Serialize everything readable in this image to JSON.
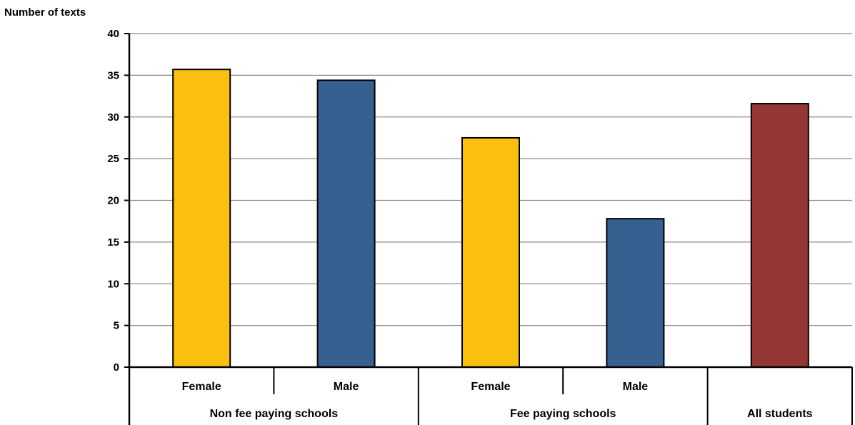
{
  "chart_data": {
    "type": "bar",
    "title": "",
    "ylabel": "Number of texts",
    "xlabel": "",
    "ylim": [
      0,
      40
    ],
    "yticks": [
      0,
      5,
      10,
      15,
      20,
      25,
      30,
      35,
      40
    ],
    "grid": true,
    "legend": "none",
    "categories": [
      "Female",
      "Male",
      "Female",
      "Male",
      ""
    ],
    "groups": [
      {
        "label": "Non fee paying schools",
        "categories": [
          "Female",
          "Male"
        ]
      },
      {
        "label": "Fee paying schools",
        "categories": [
          "Female",
          "Male"
        ]
      },
      {
        "label": "All students",
        "categories": [
          ""
        ]
      }
    ],
    "values": [
      35.7,
      34.4,
      27.5,
      17.8,
      31.6
    ],
    "bar_colors": [
      "#FBBF10",
      "#35608F",
      "#FBBF10",
      "#35608F",
      "#943634"
    ]
  }
}
